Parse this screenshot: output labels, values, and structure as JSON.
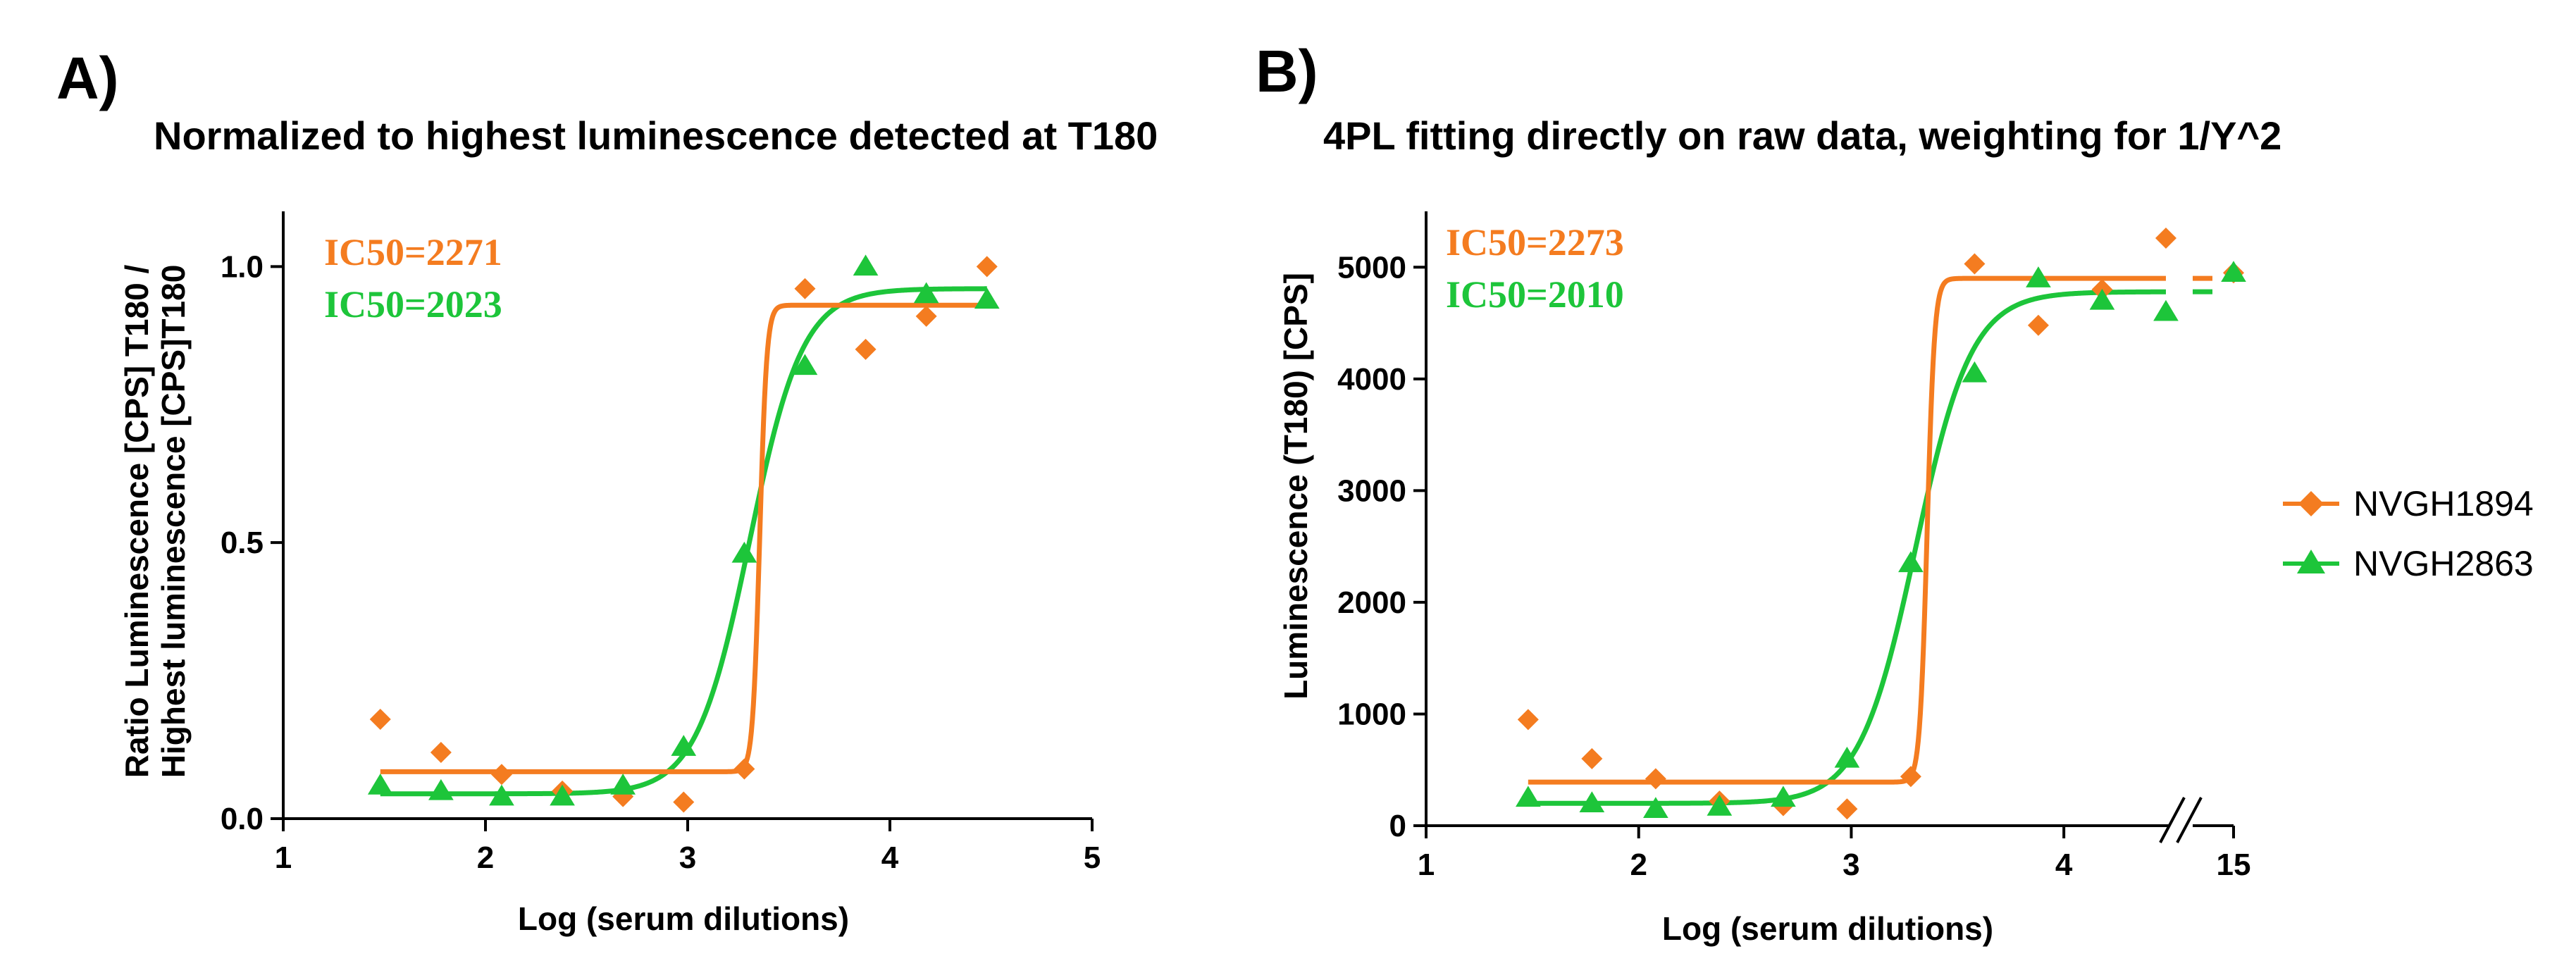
{
  "panels": [
    {
      "letter": "A)",
      "title": "Normalized to highest luminescence detected at T180"
    },
    {
      "letter": "B)",
      "title": "4PL fitting directly on raw data, weighting for 1/Y^2"
    }
  ],
  "colors": {
    "orange": "#F47C20",
    "green": "#1DC53A",
    "axis": "#000000"
  },
  "legend": [
    {
      "name": "NVGH1894",
      "color": "#F47C20",
      "marker": "diamond"
    },
    {
      "name": "NVGH2863",
      "color": "#1DC53A",
      "marker": "triangle"
    }
  ],
  "chart_data": [
    {
      "type": "scatter",
      "title": "Normalized to highest luminescence detected at T180",
      "xlabel": "Log (serum dilutions)",
      "ylabel_line1": "Ratio Luminescence [CPS] T180 /",
      "ylabel_line2": "Highest luminescence [CPS]T180",
      "xlim": [
        1,
        5
      ],
      "ylim": [
        0,
        1.1
      ],
      "xticks": [
        1,
        2,
        3,
        4,
        5
      ],
      "xtick_labels": [
        "1",
        "2",
        "3",
        "4",
        "5"
      ],
      "yticks": [
        0,
        0.5,
        1.0
      ],
      "ytick_labels": [
        "0.0",
        "0.5",
        "1.0"
      ],
      "annotations": [
        {
          "text": "IC50=2271",
          "series": "NVGH1894"
        },
        {
          "text": "IC50=2023",
          "series": "NVGH2863"
        }
      ],
      "series": [
        {
          "name": "NVGH1894",
          "marker": "diamond",
          "x": [
            1.48,
            1.78,
            2.08,
            2.38,
            2.68,
            2.98,
            3.28,
            3.58,
            3.88,
            4.18,
            4.48
          ],
          "y": [
            0.18,
            0.12,
            0.08,
            0.05,
            0.04,
            0.03,
            0.09,
            0.96,
            0.85,
            0.91,
            1.0
          ],
          "fit": {
            "bottom": 0.085,
            "top": 0.93,
            "logIC50": 3.356,
            "hill": 25
          }
        },
        {
          "name": "NVGH2863",
          "marker": "triangle",
          "x": [
            1.48,
            1.78,
            2.08,
            2.38,
            2.68,
            2.98,
            3.28,
            3.58,
            3.88,
            4.18,
            4.48
          ],
          "y": [
            0.06,
            0.05,
            0.04,
            0.04,
            0.06,
            0.13,
            0.48,
            0.82,
            1.0,
            0.95,
            0.94
          ],
          "fit": {
            "bottom": 0.045,
            "top": 0.96,
            "logIC50": 3.306,
            "hill": 3.3
          }
        }
      ]
    },
    {
      "type": "scatter",
      "title": "4PL fitting directly on raw data, weighting for 1/Y^2",
      "xlabel": "Log (serum dilutions)",
      "ylabel": "Luminescence (T180) [CPS]",
      "xlim": [
        1,
        4.5
      ],
      "ylim": [
        0,
        5500
      ],
      "axis_break": {
        "after": 4.5,
        "label": "15",
        "break_x": 15
      },
      "xticks": [
        1,
        2,
        3,
        4
      ],
      "xtick_labels": [
        "1",
        "2",
        "3",
        "4"
      ],
      "yticks": [
        0,
        1000,
        2000,
        3000,
        4000,
        5000
      ],
      "ytick_labels": [
        "0",
        "1000",
        "2000",
        "3000",
        "4000",
        "5000"
      ],
      "annotations": [
        {
          "text": "IC50=2273",
          "series": "NVGH1894"
        },
        {
          "text": "IC50=2010",
          "series": "NVGH2863"
        }
      ],
      "series": [
        {
          "name": "NVGH1894",
          "marker": "diamond",
          "x": [
            1.48,
            1.78,
            2.08,
            2.38,
            2.68,
            2.98,
            3.28,
            3.58,
            3.88,
            4.18,
            4.48
          ],
          "y": [
            950,
            600,
            420,
            220,
            180,
            150,
            440,
            5030,
            4480,
            4800,
            5260
          ],
          "break_point": {
            "x": 15,
            "y": 4950
          },
          "fit": {
            "bottom": 390,
            "top": 4900,
            "logIC50": 3.357,
            "hill": 25
          }
        },
        {
          "name": "NVGH2863",
          "marker": "triangle",
          "x": [
            1.48,
            1.78,
            2.08,
            2.38,
            2.68,
            2.98,
            3.28,
            3.58,
            3.88,
            4.18,
            4.48
          ],
          "y": [
            250,
            200,
            150,
            170,
            250,
            600,
            2350,
            4050,
            4900,
            4700,
            4600
          ],
          "break_point": {
            "x": 15,
            "y": 4950
          },
          "fit": {
            "bottom": 200,
            "top": 4780,
            "logIC50": 3.303,
            "hill": 3.3
          }
        }
      ]
    }
  ]
}
